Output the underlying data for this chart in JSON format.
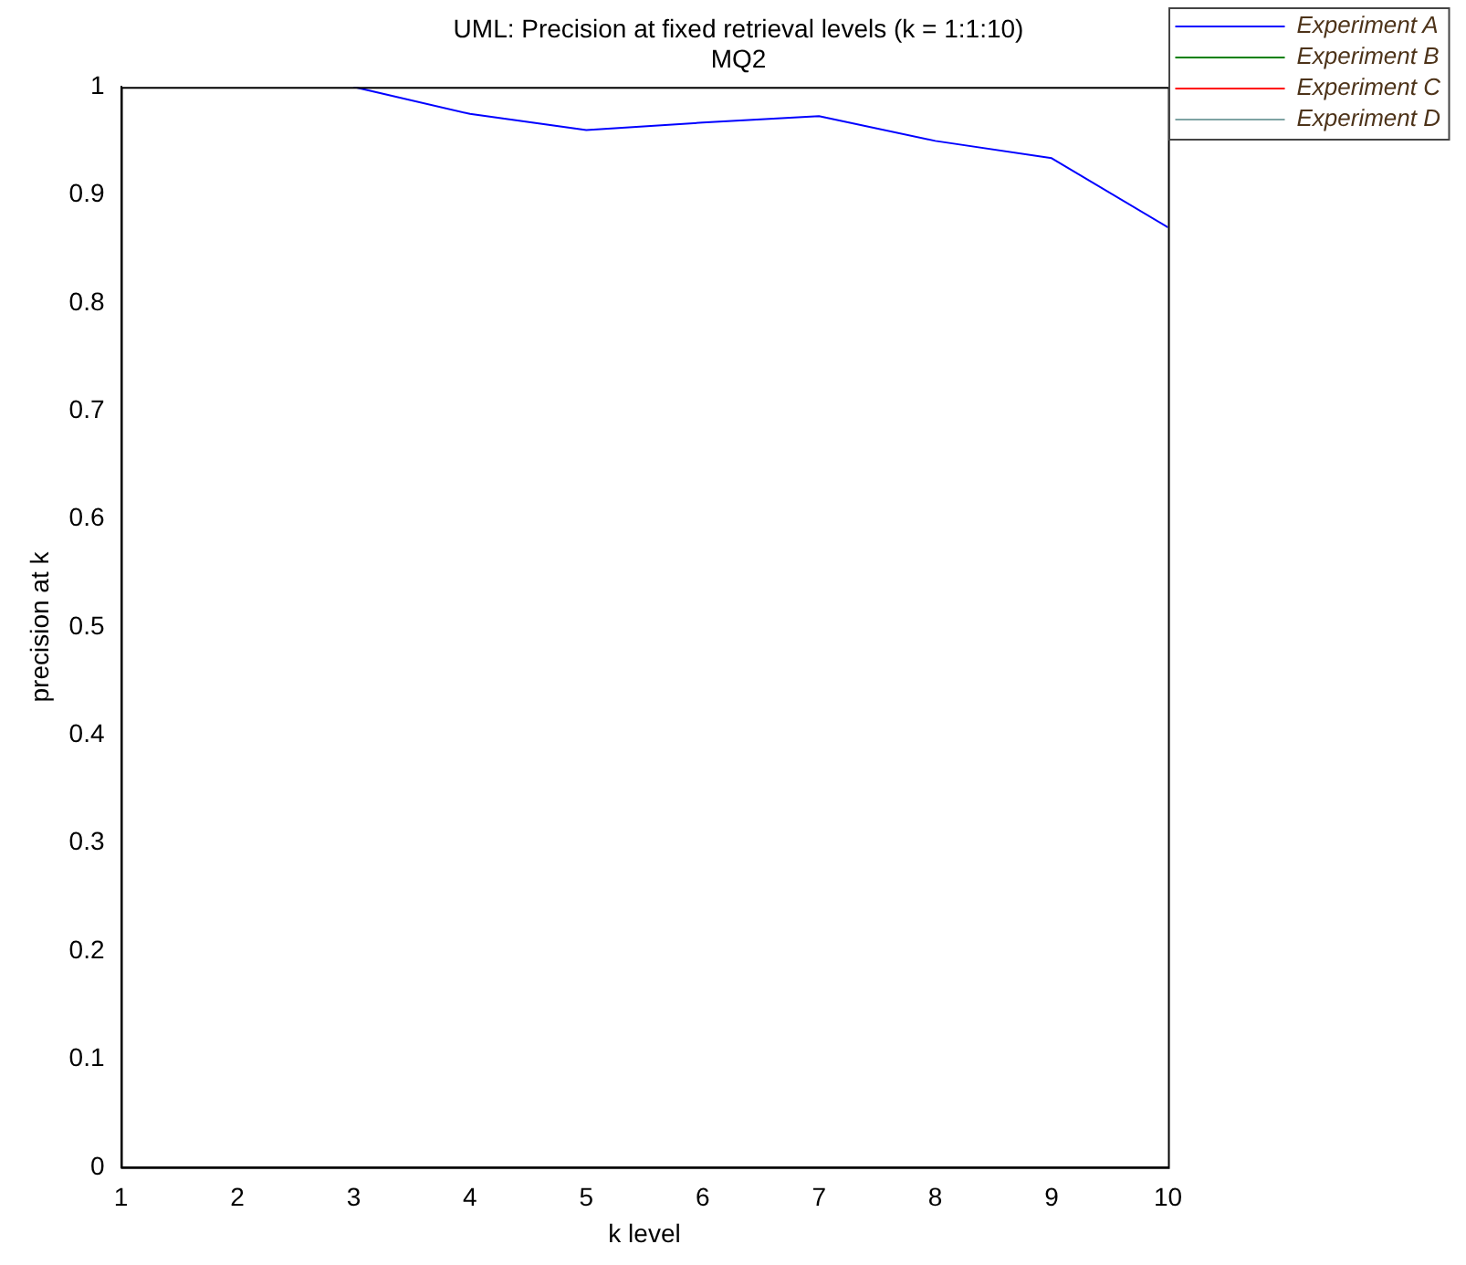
{
  "chart_data": {
    "type": "line",
    "title": "UML: Precision at fixed retrieval levels (k = 1:1:10)",
    "subtitle": "MQ2",
    "xlabel": "k level",
    "ylabel": "precision at k",
    "x": [
      3,
      4,
      5,
      6,
      7,
      8,
      9,
      10
    ],
    "series": [
      {
        "name": "Experiment A",
        "color": "#0000ff",
        "values": [
          1.0,
          0.975,
          0.96,
          0.967,
          0.973,
          0.95,
          0.934,
          0.87
        ]
      },
      {
        "name": "Experiment B",
        "color": "#008000",
        "values": [
          null,
          null,
          null,
          null,
          null,
          null,
          null,
          null
        ]
      },
      {
        "name": "Experiment C",
        "color": "#ff0000",
        "values": [
          null,
          null,
          null,
          null,
          null,
          null,
          null,
          null
        ]
      },
      {
        "name": "Experiment D",
        "color": "#7fa3a3",
        "values": [
          null,
          null,
          null,
          null,
          null,
          null,
          null,
          null
        ]
      }
    ],
    "xlim": [
      1,
      10
    ],
    "xticks": [
      1,
      2,
      3,
      4,
      5,
      6,
      7,
      8,
      9,
      10
    ],
    "ylim": [
      0,
      1
    ],
    "yticks": [
      0,
      0.1,
      0.2,
      0.3,
      0.4,
      0.5,
      0.6,
      0.7,
      0.8,
      0.9,
      1
    ],
    "grid": false,
    "legend": "top right",
    "marker": "none",
    "line_style": "solid"
  }
}
